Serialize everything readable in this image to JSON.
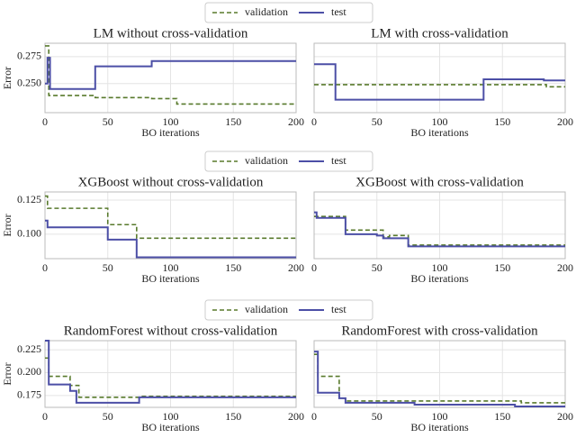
{
  "chart_data": [
    {
      "type": "line",
      "title": "LM without cross-validation",
      "xlabel": "BO iterations",
      "ylabel": "Error",
      "legend": "above",
      "grid": true,
      "show_ytick_labels": true,
      "xlim": [
        0,
        200
      ],
      "xticks": [
        0,
        50,
        100,
        150,
        200
      ],
      "ylim": [
        0.223,
        0.2875
      ],
      "yticks": [
        {
          "value": 0.25,
          "label": "0.250"
        },
        0.275
      ],
      "series": [
        {
          "name": "validation",
          "color": "#587a2c",
          "dashed": true,
          "x": [
            0,
            3,
            3,
            40,
            40,
            85,
            85,
            105,
            105,
            200
          ],
          "values": [
            0.285,
            0.285,
            0.239,
            0.239,
            0.237,
            0.237,
            0.236,
            0.236,
            0.231,
            0.231
          ]
        },
        {
          "name": "test",
          "color": "#4c4fa6",
          "dashed": false,
          "x": [
            0,
            2,
            2,
            4,
            4,
            40,
            40,
            85,
            85,
            200
          ],
          "values": [
            0.25,
            0.25,
            0.274,
            0.274,
            0.245,
            0.245,
            0.266,
            0.266,
            0.271,
            0.271
          ]
        }
      ]
    },
    {
      "type": "line",
      "title": "LM with cross-validation",
      "xlabel": "BO iterations",
      "grid": true,
      "show_ytick_labels": false,
      "xlim": [
        0,
        200
      ],
      "xticks": [
        0,
        50,
        100,
        150,
        200
      ],
      "ylim": [
        0.223,
        0.2875
      ],
      "yticks": [
        0.25,
        0.275
      ],
      "series": [
        {
          "name": "validation",
          "color": "#587a2c",
          "dashed": true,
          "x": [
            0,
            185,
            185,
            200
          ],
          "values": [
            0.249,
            0.249,
            0.247,
            0.247
          ]
        },
        {
          "name": "test",
          "color": "#4c4fa6",
          "dashed": false,
          "x": [
            0,
            17,
            17,
            135,
            135,
            183,
            183,
            200
          ],
          "values": [
            0.268,
            0.268,
            0.235,
            0.235,
            0.254,
            0.254,
            0.253,
            0.253
          ]
        }
      ]
    },
    {
      "type": "line",
      "title": "XGBoost without cross-validation",
      "xlabel": "BO iterations",
      "ylabel": "Error",
      "legend": "above",
      "grid": true,
      "show_ytick_labels": true,
      "xlim": [
        0,
        200
      ],
      "xticks": [
        0,
        50,
        100,
        150,
        200
      ],
      "ylim": [
        0.082,
        0.131
      ],
      "yticks": [
        {
          "value": 0.1,
          "label": "0.100"
        },
        0.125
      ],
      "series": [
        {
          "name": "validation",
          "color": "#587a2c",
          "dashed": true,
          "x": [
            0,
            2,
            2,
            50,
            50,
            73,
            73,
            200
          ],
          "values": [
            0.128,
            0.128,
            0.119,
            0.119,
            0.107,
            0.107,
            0.097,
            0.097
          ]
        },
        {
          "name": "test",
          "color": "#4c4fa6",
          "dashed": false,
          "x": [
            0,
            2,
            2,
            50,
            50,
            73,
            73,
            200
          ],
          "values": [
            0.11,
            0.11,
            0.105,
            0.105,
            0.096,
            0.096,
            0.083,
            0.083
          ]
        }
      ]
    },
    {
      "type": "line",
      "title": "XGBoost with cross-validation",
      "xlabel": "BO iterations",
      "grid": true,
      "show_ytick_labels": false,
      "xlim": [
        0,
        200
      ],
      "xticks": [
        0,
        50,
        100,
        150,
        200
      ],
      "ylim": [
        0.082,
        0.131
      ],
      "yticks": [
        0.1,
        0.125
      ],
      "series": [
        {
          "name": "validation",
          "color": "#587a2c",
          "dashed": true,
          "x": [
            0,
            25,
            25,
            55,
            55,
            60,
            60,
            75,
            75,
            200
          ],
          "values": [
            0.113,
            0.113,
            0.103,
            0.103,
            0.098,
            0.098,
            0.099,
            0.099,
            0.092,
            0.092
          ]
        },
        {
          "name": "test",
          "color": "#4c4fa6",
          "dashed": false,
          "x": [
            0,
            2,
            2,
            25,
            25,
            50,
            50,
            55,
            55,
            75,
            75,
            200
          ],
          "values": [
            0.116,
            0.116,
            0.112,
            0.112,
            0.1,
            0.1,
            0.099,
            0.099,
            0.097,
            0.097,
            0.091,
            0.091
          ]
        }
      ]
    },
    {
      "type": "line",
      "title": "RandomForest without cross-validation",
      "xlabel": "BO iterations",
      "ylabel": "Error",
      "legend": "above",
      "grid": true,
      "show_ytick_labels": true,
      "xlim": [
        0,
        200
      ],
      "xticks": [
        0,
        50,
        100,
        150,
        200
      ],
      "ylim": [
        0.162,
        0.235
      ],
      "yticks": [
        0.175,
        {
          "value": 0.2,
          "label": "0.200"
        },
        0.225
      ],
      "series": [
        {
          "name": "validation",
          "color": "#587a2c",
          "dashed": true,
          "x": [
            0,
            3,
            3,
            20,
            20,
            27,
            27,
            75,
            75,
            200
          ],
          "values": [
            0.216,
            0.216,
            0.196,
            0.196,
            0.186,
            0.186,
            0.173,
            0.173,
            0.174,
            0.174
          ]
        },
        {
          "name": "test",
          "color": "#4c4fa6",
          "dashed": false,
          "x": [
            0,
            3,
            3,
            20,
            20,
            25,
            25,
            75,
            75,
            200
          ],
          "values": [
            0.235,
            0.235,
            0.187,
            0.187,
            0.18,
            0.18,
            0.167,
            0.167,
            0.173,
            0.173
          ]
        }
      ]
    },
    {
      "type": "line",
      "title": "RandomForest with cross-validation",
      "xlabel": "BO iterations",
      "grid": true,
      "show_ytick_labels": false,
      "xlim": [
        0,
        200
      ],
      "xticks": [
        0,
        50,
        100,
        150,
        200
      ],
      "ylim": [
        0.162,
        0.235
      ],
      "yticks": [
        0.175,
        0.2,
        0.225
      ],
      "series": [
        {
          "name": "validation",
          "color": "#587a2c",
          "dashed": true,
          "x": [
            0,
            3,
            3,
            20,
            20,
            25,
            25,
            165,
            165,
            200
          ],
          "values": [
            0.22,
            0.22,
            0.196,
            0.196,
            0.172,
            0.172,
            0.169,
            0.169,
            0.167,
            0.167
          ]
        },
        {
          "name": "test",
          "color": "#4c4fa6",
          "dashed": false,
          "x": [
            0,
            3,
            3,
            20,
            20,
            25,
            25,
            80,
            80,
            160,
            160,
            200
          ],
          "values": [
            0.223,
            0.223,
            0.178,
            0.178,
            0.172,
            0.172,
            0.167,
            0.167,
            0.165,
            0.165,
            0.163,
            0.163
          ]
        }
      ]
    }
  ]
}
